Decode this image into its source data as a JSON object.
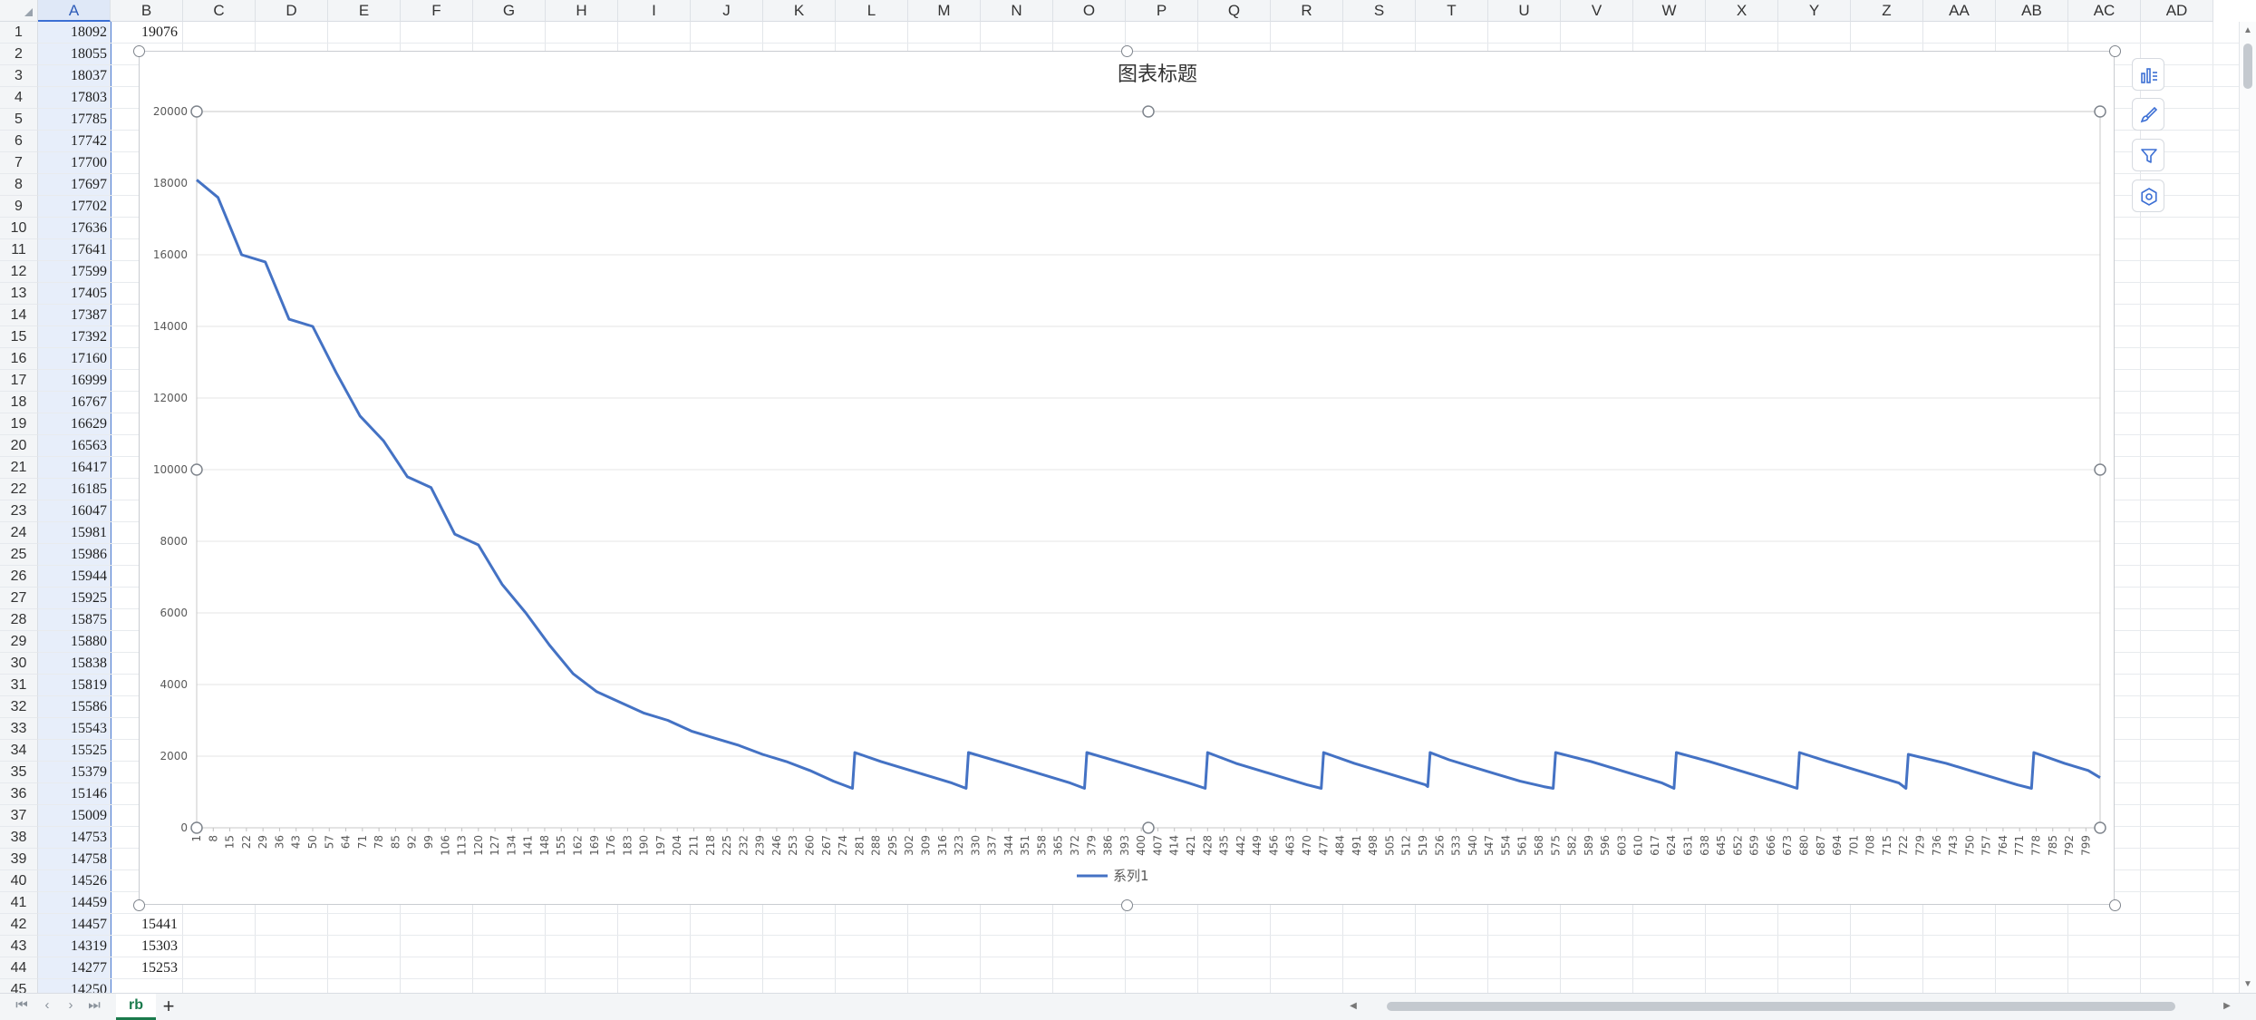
{
  "app": {
    "sheet_tab": "rb",
    "add_sheet_label": "+",
    "nav_arrows": [
      "⏮",
      "‹",
      "›",
      "⏭"
    ]
  },
  "columns": [
    "A",
    "B",
    "C",
    "D",
    "E",
    "F",
    "G",
    "H",
    "I",
    "J",
    "K",
    "L",
    "M",
    "N",
    "O",
    "P",
    "Q",
    "R",
    "S",
    "T",
    "U",
    "V",
    "W",
    "X",
    "Y",
    "Z",
    "AA",
    "AB",
    "AC",
    "AD"
  ],
  "selected_column": "A",
  "rows": [
    "1",
    "2",
    "3",
    "4",
    "5",
    "6",
    "7",
    "8",
    "9",
    "10",
    "11",
    "12",
    "13",
    "14",
    "15",
    "16",
    "17",
    "18",
    "19",
    "20",
    "21",
    "22",
    "23",
    "24",
    "25",
    "26",
    "27",
    "28",
    "29",
    "30",
    "31",
    "32",
    "33",
    "34",
    "35",
    "36",
    "37",
    "38",
    "39",
    "40",
    "41",
    "42",
    "43",
    "44",
    "45"
  ],
  "col_a_values": [
    "18092",
    "18055",
    "18037",
    "17803",
    "17785",
    "17742",
    "17700",
    "17697",
    "17702",
    "17636",
    "17641",
    "17599",
    "17405",
    "17387",
    "17392",
    "17160",
    "16999",
    "16767",
    "16629",
    "16563",
    "16417",
    "16185",
    "16047",
    "15981",
    "15986",
    "15944",
    "15925",
    "15875",
    "15880",
    "15838",
    "15819",
    "15586",
    "15543",
    "15525",
    "15379",
    "15146",
    "15009",
    "14753",
    "14758",
    "14526",
    "14459",
    "14457",
    "14319",
    "14277",
    "14250"
  ],
  "col_b_visible": [
    {
      "row": 1,
      "value": "19076"
    },
    {
      "row": 42,
      "value": "15441"
    },
    {
      "row": 43,
      "value": "15303"
    },
    {
      "row": 44,
      "value": "15253"
    }
  ],
  "chart_data": {
    "type": "line",
    "title": "图表标题",
    "xlabel": "",
    "ylabel": "",
    "ylim": [
      0,
      20000
    ],
    "y_ticks": [
      0,
      2000,
      4000,
      6000,
      8000,
      10000,
      12000,
      14000,
      16000,
      18000,
      20000
    ],
    "x_count": 805,
    "x_tick_labels": [
      "1",
      "8",
      "15",
      "22",
      "29",
      "36",
      "43",
      "50",
      "57",
      "64",
      "71",
      "78",
      "85",
      "92",
      "99",
      "106",
      "113",
      "120",
      "127",
      "134",
      "141",
      "148",
      "155",
      "162",
      "169",
      "176",
      "183",
      "190",
      "197",
      "204",
      "211",
      "218",
      "225",
      "232",
      "239",
      "246",
      "253",
      "260",
      "267",
      "274",
      "281",
      "288",
      "295",
      "302",
      "309",
      "316",
      "323",
      "330",
      "337",
      "344",
      "351",
      "358",
      "365",
      "372",
      "379",
      "386",
      "393",
      "400",
      "407",
      "414",
      "421",
      "428",
      "435",
      "442",
      "449",
      "456",
      "463",
      "470",
      "477",
      "484",
      "491",
      "498",
      "505",
      "512",
      "519",
      "526",
      "533",
      "540",
      "547",
      "554",
      "561",
      "568",
      "575",
      "582",
      "589",
      "596",
      "603",
      "610",
      "617",
      "624",
      "631",
      "638",
      "645",
      "652",
      "659",
      "666",
      "673",
      "680",
      "687",
      "694",
      "701",
      "708",
      "715",
      "722",
      "729",
      "736",
      "743",
      "750",
      "757",
      "764",
      "771",
      "778",
      "785",
      "792",
      "799"
    ],
    "grid": true,
    "legend_position": "bottom",
    "series": [
      {
        "name": "系列1",
        "color": "#4472c4",
        "x": [
          1,
          10,
          20,
          30,
          40,
          50,
          60,
          70,
          80,
          90,
          100,
          110,
          120,
          130,
          140,
          150,
          160,
          170,
          180,
          190,
          200,
          210,
          220,
          230,
          240,
          250,
          260,
          270,
          278,
          279,
          290,
          300,
          310,
          320,
          326,
          327,
          340,
          350,
          360,
          370,
          376,
          377,
          390,
          400,
          410,
          420,
          427,
          428,
          440,
          450,
          460,
          470,
          476,
          477,
          490,
          500,
          510,
          520,
          521,
          522,
          530,
          540,
          550,
          560,
          570,
          574,
          575,
          590,
          600,
          610,
          620,
          625,
          626,
          640,
          650,
          660,
          670,
          677,
          678,
          690,
          700,
          710,
          720,
          723,
          724,
          740,
          750,
          760,
          770,
          776,
          777,
          790,
          800,
          805
        ],
        "y": [
          18092,
          17600,
          16000,
          15800,
          14200,
          14000,
          12700,
          11500,
          10800,
          9800,
          9500,
          8200,
          7900,
          6800,
          6000,
          5100,
          4300,
          3800,
          3500,
          3200,
          3000,
          2700,
          2500,
          2300,
          2050,
          1850,
          1600,
          1300,
          1100,
          2100,
          1850,
          1650,
          1450,
          1250,
          1100,
          2100,
          1850,
          1650,
          1450,
          1250,
          1100,
          2100,
          1850,
          1650,
          1450,
          1250,
          1100,
          2100,
          1800,
          1600,
          1400,
          1200,
          1100,
          2100,
          1800,
          1600,
          1400,
          1200,
          1150,
          2100,
          1900,
          1700,
          1500,
          1300,
          1150,
          1100,
          2100,
          1850,
          1650,
          1450,
          1250,
          1100,
          2100,
          1850,
          1650,
          1450,
          1250,
          1100,
          2100,
          1850,
          1650,
          1450,
          1250,
          1100,
          2050,
          1800,
          1600,
          1400,
          1200,
          1100,
          2100,
          1800,
          1600,
          1400
        ]
      }
    ]
  },
  "tool_buttons": [
    {
      "name": "chart-elements-icon"
    },
    {
      "name": "chart-style-brush-icon"
    },
    {
      "name": "chart-filter-icon"
    },
    {
      "name": "chart-settings-icon"
    }
  ]
}
